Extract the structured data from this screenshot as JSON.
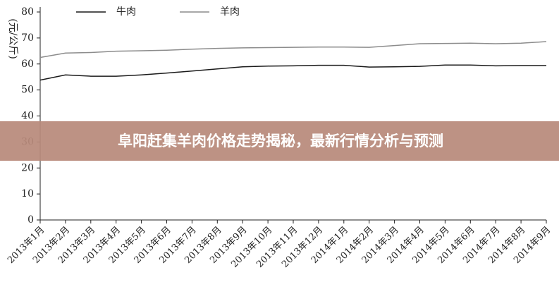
{
  "chart_data": {
    "type": "line",
    "y_label": "(元/公斤)",
    "categories": [
      "2013年1月",
      "2013年2月",
      "2013年3月",
      "2013年4月",
      "2013年5月",
      "2013年6月",
      "2013年7月",
      "2013年8月",
      "2013年9月",
      "2013年10月",
      "2013年11月",
      "2013年12月",
      "2014年1月",
      "2014年2月",
      "2014年3月",
      "2014年4月",
      "2014年5月",
      "2014年6月",
      "2014年7月",
      "2014年8月",
      "2014年9月"
    ],
    "series": [
      {
        "name": "牛肉",
        "color": "#1a1a1a",
        "values": [
          53.8,
          55.8,
          55.3,
          55.3,
          55.8,
          56.5,
          57.3,
          58.1,
          58.9,
          59.2,
          59.3,
          59.5,
          59.5,
          58.8,
          58.9,
          59.1,
          59.6,
          59.6,
          59.3,
          59.4,
          59.4
        ]
      },
      {
        "name": "羊肉",
        "color": "#8c8c8c",
        "values": [
          62.5,
          64.2,
          64.4,
          64.9,
          65.1,
          65.3,
          65.7,
          66.0,
          66.2,
          66.3,
          66.4,
          66.5,
          66.5,
          66.4,
          67.1,
          67.8,
          67.9,
          68.0,
          67.8,
          68.0,
          68.6
        ]
      }
    ],
    "ylim": [
      0,
      80
    ],
    "yticks": [
      0,
      10,
      20,
      30,
      40,
      50,
      60,
      70,
      80
    ],
    "grid": false,
    "legend": "top"
  },
  "banner": {
    "text": "阜阳赶集羊肉价格走势揭秘，最新行情分析与预测"
  }
}
